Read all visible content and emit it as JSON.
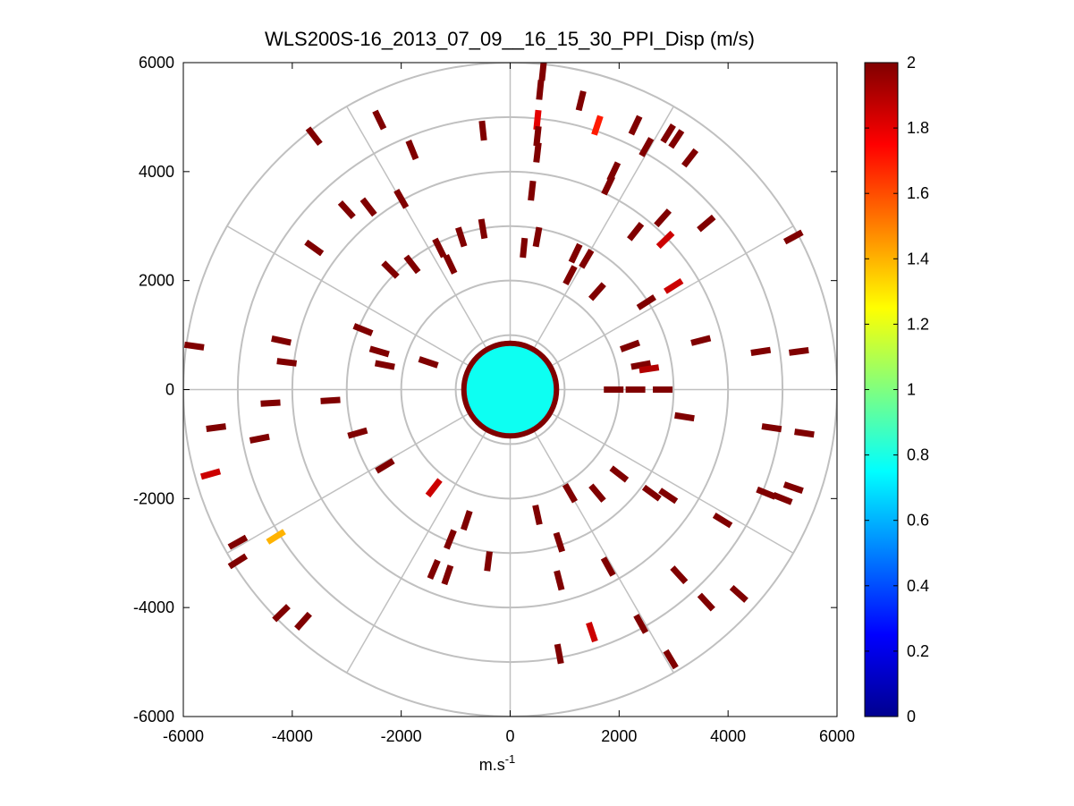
{
  "chart_data": {
    "type": "heatmap",
    "subtype": "polar-ppi",
    "title": "WLS200S-16_2013_07_09__16_15_30_PPI_Disp (m/s)",
    "xlabel_base": "m.s",
    "xlabel_sup": "-1",
    "ylabel": "",
    "xlim": [
      -6000,
      6000
    ],
    "ylim": [
      -6000,
      6000
    ],
    "xticks": [
      "-6000",
      "-4000",
      "-2000",
      "0",
      "2000",
      "4000",
      "6000"
    ],
    "yticks": [
      "6000",
      "4000",
      "2000",
      "0",
      "-2000",
      "-4000",
      "-6000"
    ],
    "xtick_values": [
      -6000,
      -4000,
      -2000,
      0,
      2000,
      4000,
      6000
    ],
    "ytick_values": [
      6000,
      4000,
      2000,
      0,
      -2000,
      -4000,
      -6000
    ],
    "polar_grid": {
      "rings": [
        1000,
        2000,
        3000,
        4000,
        5000,
        6000
      ],
      "spoke_angles_deg": [
        0,
        30,
        60,
        90,
        120,
        150,
        180,
        210,
        240,
        270,
        300,
        330
      ]
    },
    "colorbar": {
      "colormap": "jet",
      "min": 0,
      "max": 2,
      "ticks": [
        "2",
        "1.8",
        "1.6",
        "1.4",
        "1.2",
        "1",
        "0.8",
        "0.6",
        "0.4",
        "0.2",
        "0"
      ],
      "tick_values": [
        2,
        1.8,
        1.6,
        1.4,
        1.2,
        1,
        0.8,
        0.6,
        0.4,
        0.2,
        0
      ]
    },
    "near_field": {
      "radius": 850,
      "value_range": [
        0.55,
        1.0
      ]
    },
    "points": [
      {
        "x": 600,
        "y": 5850,
        "v": 2.0
      },
      {
        "x": 550,
        "y": 5500,
        "v": 2.0
      },
      {
        "x": 1300,
        "y": 5300,
        "v": 2.0
      },
      {
        "x": 2300,
        "y": 4850,
        "v": 2.0
      },
      {
        "x": 2900,
        "y": 4700,
        "v": 2.0
      },
      {
        "x": 3050,
        "y": 4600,
        "v": 2.0
      },
      {
        "x": 500,
        "y": 4950,
        "v": 1.8
      },
      {
        "x": 1600,
        "y": 4850,
        "v": 1.7
      },
      {
        "x": -2400,
        "y": 4950,
        "v": 2.0
      },
      {
        "x": -3600,
        "y": 4650,
        "v": 2.0
      },
      {
        "x": -500,
        "y": 4750,
        "v": 2.0
      },
      {
        "x": 500,
        "y": 4650,
        "v": 2.0
      },
      {
        "x": 2500,
        "y": 4450,
        "v": 2.0
      },
      {
        "x": 3300,
        "y": 4250,
        "v": 2.0
      },
      {
        "x": 1900,
        "y": 4000,
        "v": 2.0
      },
      {
        "x": -1800,
        "y": 4400,
        "v": 2.0
      },
      {
        "x": 500,
        "y": 4350,
        "v": 2.0
      },
      {
        "x": 1800,
        "y": 3750,
        "v": 2.0
      },
      {
        "x": 400,
        "y": 3650,
        "v": 2.0
      },
      {
        "x": 2800,
        "y": 3150,
        "v": 2.0
      },
      {
        "x": 3600,
        "y": 3050,
        "v": 2.0
      },
      {
        "x": -2000,
        "y": 3500,
        "v": 2.0
      },
      {
        "x": -3000,
        "y": 3300,
        "v": 2.0
      },
      {
        "x": -2600,
        "y": 3350,
        "v": 2.0
      },
      {
        "x": 2300,
        "y": 2900,
        "v": 2.0
      },
      {
        "x": 2850,
        "y": 2750,
        "v": 1.85
      },
      {
        "x": 5200,
        "y": 2800,
        "v": 2.0
      },
      {
        "x": -3600,
        "y": 2600,
        "v": 2.0
      },
      {
        "x": -1300,
        "y": 2600,
        "v": 2.0
      },
      {
        "x": -900,
        "y": 2800,
        "v": 2.0
      },
      {
        "x": -500,
        "y": 2950,
        "v": 2.0
      },
      {
        "x": 250,
        "y": 2600,
        "v": 2.0
      },
      {
        "x": 500,
        "y": 2800,
        "v": 2.0
      },
      {
        "x": 1200,
        "y": 2500,
        "v": 2.0
      },
      {
        "x": 1400,
        "y": 2400,
        "v": 2.0
      },
      {
        "x": -1800,
        "y": 2300,
        "v": 2.0
      },
      {
        "x": -2200,
        "y": 2200,
        "v": 2.0
      },
      {
        "x": -1100,
        "y": 2300,
        "v": 2.0
      },
      {
        "x": 1100,
        "y": 2100,
        "v": 2.0
      },
      {
        "x": 3000,
        "y": 1900,
        "v": 1.85
      },
      {
        "x": 1600,
        "y": 1800,
        "v": 2.0
      },
      {
        "x": 2500,
        "y": 1600,
        "v": 2.0
      },
      {
        "x": -5800,
        "y": 800,
        "v": 2.0
      },
      {
        "x": -4200,
        "y": 900,
        "v": 2.0
      },
      {
        "x": -2700,
        "y": 1100,
        "v": 2.0
      },
      {
        "x": -2400,
        "y": 700,
        "v": 2.0
      },
      {
        "x": -2300,
        "y": 450,
        "v": 2.0
      },
      {
        "x": -1500,
        "y": 500,
        "v": 2.0
      },
      {
        "x": -4100,
        "y": 500,
        "v": 2.0
      },
      {
        "x": 2400,
        "y": 450,
        "v": 2.0
      },
      {
        "x": 2550,
        "y": 380,
        "v": 1.9
      },
      {
        "x": 3500,
        "y": 900,
        "v": 2.0
      },
      {
        "x": 5300,
        "y": 700,
        "v": 2.0
      },
      {
        "x": 4600,
        "y": 700,
        "v": 2.0
      },
      {
        "x": 2200,
        "y": 800,
        "v": 2.0
      },
      {
        "x": 1900,
        "y": 0,
        "v": 2.0
      },
      {
        "x": 2300,
        "y": 0,
        "v": 2.0
      },
      {
        "x": 2800,
        "y": 0,
        "v": 2.0
      },
      {
        "x": -3300,
        "y": -200,
        "v": 2.0
      },
      {
        "x": -4400,
        "y": -250,
        "v": 2.0
      },
      {
        "x": -5400,
        "y": -700,
        "v": 2.0
      },
      {
        "x": -4600,
        "y": -900,
        "v": 2.0
      },
      {
        "x": -2800,
        "y": -800,
        "v": 2.0
      },
      {
        "x": -2300,
        "y": -1400,
        "v": 2.0
      },
      {
        "x": -5500,
        "y": -1550,
        "v": 1.85
      },
      {
        "x": 3200,
        "y": -500,
        "v": 2.0
      },
      {
        "x": 4800,
        "y": -700,
        "v": 2.0
      },
      {
        "x": 5400,
        "y": -800,
        "v": 2.0
      },
      {
        "x": 4700,
        "y": -1900,
        "v": 2.0
      },
      {
        "x": 5000,
        "y": -2000,
        "v": 2.0
      },
      {
        "x": 5200,
        "y": -1800,
        "v": 2.0
      },
      {
        "x": 2600,
        "y": -1900,
        "v": 2.0
      },
      {
        "x": 2900,
        "y": -1950,
        "v": 2.0
      },
      {
        "x": 1600,
        "y": -1900,
        "v": 2.0
      },
      {
        "x": 2000,
        "y": -1550,
        "v": 2.0
      },
      {
        "x": 1100,
        "y": -1900,
        "v": 2.0
      },
      {
        "x": -1400,
        "y": -1800,
        "v": 1.85
      },
      {
        "x": -4300,
        "y": -2700,
        "v": 1.4
      },
      {
        "x": -5000,
        "y": -2800,
        "v": 2.0
      },
      {
        "x": -5000,
        "y": -3150,
        "v": 2.0
      },
      {
        "x": -800,
        "y": -2400,
        "v": 2.0
      },
      {
        "x": -1100,
        "y": -2750,
        "v": 2.0
      },
      {
        "x": 500,
        "y": -2300,
        "v": 2.0
      },
      {
        "x": 900,
        "y": -2800,
        "v": 2.0
      },
      {
        "x": 3900,
        "y": -2400,
        "v": 2.0
      },
      {
        "x": -1400,
        "y": -3300,
        "v": 2.0
      },
      {
        "x": -1150,
        "y": -3400,
        "v": 2.0
      },
      {
        "x": -400,
        "y": -3150,
        "v": 2.0
      },
      {
        "x": 900,
        "y": -3500,
        "v": 2.0
      },
      {
        "x": 1800,
        "y": -3250,
        "v": 2.0
      },
      {
        "x": 3100,
        "y": -3400,
        "v": 2.0
      },
      {
        "x": 3600,
        "y": -3900,
        "v": 2.0
      },
      {
        "x": 4200,
        "y": -3750,
        "v": 2.0
      },
      {
        "x": -4200,
        "y": -4100,
        "v": 2.0
      },
      {
        "x": -3800,
        "y": -4250,
        "v": 2.0
      },
      {
        "x": 1500,
        "y": -4450,
        "v": 1.85
      },
      {
        "x": 2400,
        "y": -4300,
        "v": 2.0
      },
      {
        "x": 900,
        "y": -4850,
        "v": 2.0
      },
      {
        "x": 2950,
        "y": -4950,
        "v": 2.0
      }
    ]
  }
}
